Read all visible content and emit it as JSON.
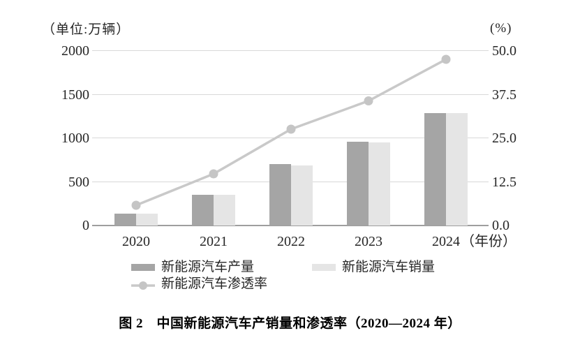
{
  "figure": {
    "caption": "图 2　中国新能源汽车产销量和渗透率（2020—2024 年）"
  },
  "chart_data": {
    "type": "combo_bar_line",
    "title": "中国新能源汽车产销量和渗透率（2020—2024 年）",
    "figure_label": "图 2",
    "categories": [
      "2020",
      "2021",
      "2022",
      "2023",
      "2024"
    ],
    "series": [
      {
        "name": "新能源汽车产量",
        "type": "bar",
        "axis": "left",
        "color": "#a5a5a5",
        "values": [
          136.6,
          354.5,
          705.8,
          958.7,
          1288.8
        ]
      },
      {
        "name": "新能源汽车销量",
        "type": "bar",
        "axis": "left",
        "color": "#e5e5e5",
        "values": [
          136.7,
          352.1,
          688.7,
          949.5,
          1286.6
        ]
      },
      {
        "name": "新能源汽车渗透率",
        "type": "line",
        "axis": "right",
        "color": "#c9c9c9",
        "marker_color": "#c5c5c5",
        "values": [
          5.8,
          14.8,
          27.6,
          35.7,
          47.6
        ]
      }
    ],
    "left_axis": {
      "unit": "（单位:万辆）",
      "min": 0,
      "max": 2000,
      "ticks": [
        0,
        500,
        1000,
        1500,
        2000
      ],
      "tick_labels": [
        "0",
        "500",
        "1000",
        "1500",
        "2000"
      ]
    },
    "right_axis": {
      "unit": "(%)",
      "min": 0,
      "max": 50,
      "ticks": [
        0,
        12.5,
        25,
        37.5,
        50
      ],
      "tick_labels": [
        "0.0",
        "12.5",
        "25.0",
        "37.5",
        "50.0"
      ]
    },
    "x_axis": {
      "suffix": "（年份）"
    },
    "grid": "horizontal",
    "legend_position": "bottom",
    "colors": {
      "grid": "#d8d8d8",
      "axis": "#9e9e9e",
      "text": "#262626"
    }
  }
}
